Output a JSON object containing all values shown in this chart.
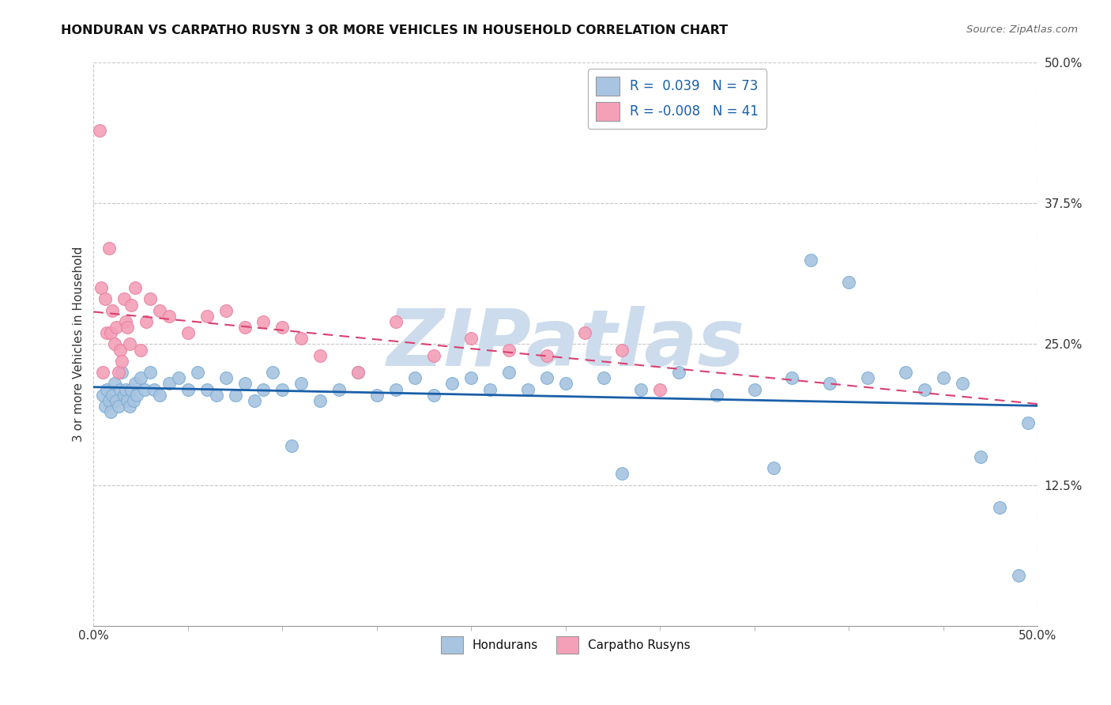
{
  "title": "HONDURAN VS CARPATHO RUSYN 3 OR MORE VEHICLES IN HOUSEHOLD CORRELATION CHART",
  "source_text": "Source: ZipAtlas.com",
  "xlabel_bottom": "Hondurans",
  "xlabel_bottom2": "Carpatho Rusyns",
  "ylabel": "3 or more Vehicles in Household",
  "xmin": 0.0,
  "xmax": 50.0,
  "ymin": 0.0,
  "ymax": 50.0,
  "yticks": [
    0.0,
    12.5,
    25.0,
    37.5,
    50.0
  ],
  "xticks": [
    0.0,
    50.0
  ],
  "legend_r1": "R =  0.039",
  "legend_n1": "N = 73",
  "legend_r2": "R = -0.008",
  "legend_n2": "N = 41",
  "blue_color": "#a8c4e0",
  "pink_color": "#f4a0b8",
  "blue_edge_color": "#7aadd4",
  "pink_edge_color": "#e880a0",
  "blue_line_color": "#1a5fa8",
  "pink_line_color": "#d94070",
  "watermark_color": "#cddcec",
  "background_color": "#ffffff",
  "grid_color": "#c8c8c8",
  "honduran_x": [
    0.5,
    0.6,
    0.7,
    0.8,
    0.9,
    1.0,
    1.1,
    1.2,
    1.3,
    1.4,
    1.5,
    1.6,
    1.7,
    1.8,
    1.9,
    2.0,
    2.1,
    2.2,
    2.3,
    2.5,
    2.7,
    3.0,
    3.2,
    3.5,
    4.0,
    4.5,
    5.0,
    5.5,
    6.0,
    6.5,
    7.0,
    7.5,
    8.0,
    8.5,
    9.0,
    9.5,
    10.0,
    11.0,
    12.0,
    13.0,
    14.0,
    15.0,
    16.0,
    17.0,
    18.0,
    19.0,
    20.0,
    21.0,
    22.0,
    23.0,
    24.0,
    25.0,
    27.0,
    29.0,
    31.0,
    33.0,
    35.0,
    37.0,
    39.0,
    41.0,
    43.0,
    44.0,
    45.0,
    46.0,
    47.0,
    48.0,
    49.0,
    49.5,
    40.0,
    38.0,
    36.0,
    28.0,
    10.5
  ],
  "honduran_y": [
    20.5,
    19.5,
    21.0,
    20.0,
    19.0,
    20.5,
    21.5,
    20.0,
    19.5,
    21.0,
    22.5,
    20.5,
    21.0,
    20.0,
    19.5,
    21.0,
    20.0,
    21.5,
    20.5,
    22.0,
    21.0,
    22.5,
    21.0,
    20.5,
    21.5,
    22.0,
    21.0,
    22.5,
    21.0,
    20.5,
    22.0,
    20.5,
    21.5,
    20.0,
    21.0,
    22.5,
    21.0,
    21.5,
    20.0,
    21.0,
    22.5,
    20.5,
    21.0,
    22.0,
    20.5,
    21.5,
    22.0,
    21.0,
    22.5,
    21.0,
    22.0,
    21.5,
    22.0,
    21.0,
    22.5,
    20.5,
    21.0,
    22.0,
    21.5,
    22.0,
    22.5,
    21.0,
    22.0,
    21.5,
    15.0,
    10.5,
    4.5,
    18.0,
    30.5,
    32.5,
    14.0,
    13.5,
    16.0
  ],
  "carpatho_x": [
    0.3,
    0.4,
    0.5,
    0.6,
    0.7,
    0.8,
    0.9,
    1.0,
    1.1,
    1.2,
    1.3,
    1.4,
    1.5,
    1.6,
    1.7,
    1.8,
    1.9,
    2.0,
    2.2,
    2.5,
    2.8,
    3.0,
    3.5,
    4.0,
    5.0,
    6.0,
    7.0,
    8.0,
    9.0,
    10.0,
    11.0,
    12.0,
    14.0,
    16.0,
    18.0,
    20.0,
    22.0,
    24.0,
    26.0,
    28.0,
    30.0
  ],
  "carpatho_y": [
    44.0,
    30.0,
    22.5,
    29.0,
    26.0,
    33.5,
    26.0,
    28.0,
    25.0,
    26.5,
    22.5,
    24.5,
    23.5,
    29.0,
    27.0,
    26.5,
    25.0,
    28.5,
    30.0,
    24.5,
    27.0,
    29.0,
    28.0,
    27.5,
    26.0,
    27.5,
    28.0,
    26.5,
    27.0,
    26.5,
    25.5,
    24.0,
    22.5,
    27.0,
    24.0,
    25.5,
    24.5,
    24.0,
    26.0,
    24.5,
    21.0
  ]
}
